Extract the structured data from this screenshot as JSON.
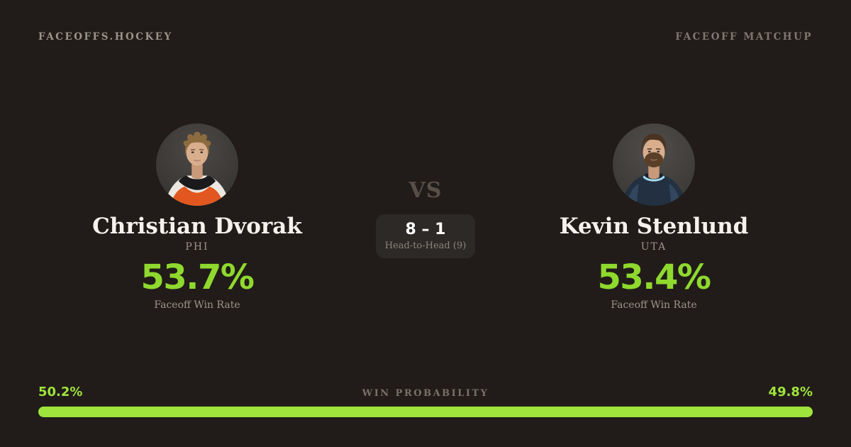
{
  "header": {
    "brand": "FACEOFFS.HOCKEY",
    "page_label": "FACEOFF MATCHUP"
  },
  "players": [
    {
      "name": "Christian Dvorak",
      "team": "PHI",
      "win_rate": "53.7%",
      "win_rate_label": "Faceoff Win Rate"
    },
    {
      "name": "Kevin Stenlund",
      "team": "UTA",
      "win_rate": "53.4%",
      "win_rate_label": "Faceoff Win Rate"
    }
  ],
  "matchup": {
    "vs_label": "VS",
    "head_to_head_score": "8 – 1",
    "head_to_head_label": "Head-to-Head (9)"
  },
  "probability": {
    "title": "WIN PROBABILITY",
    "left_label": "50.2%",
    "right_label": "49.8%",
    "left_pct": 50.2,
    "right_pct": 49.8
  },
  "colors": {
    "background": "#211c19",
    "accent_green": "#8fd92e",
    "bar_green": "#9fe43c",
    "text_primary": "#f5f1ec",
    "text_muted": "#9c948a",
    "text_dim": "#7f7870",
    "vs_color": "#574f48",
    "box_bg": "#2d2926"
  }
}
